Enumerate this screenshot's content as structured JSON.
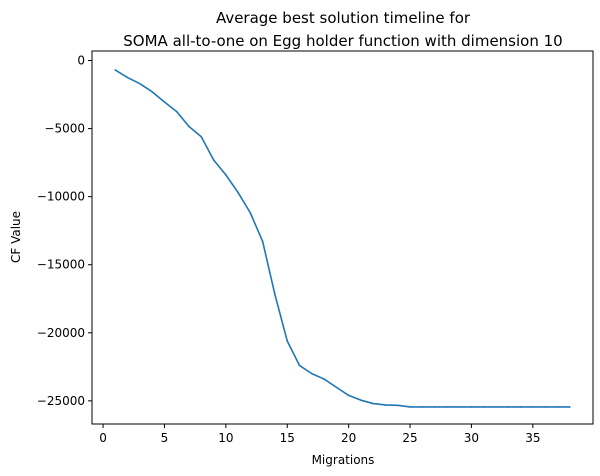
{
  "chart_data": {
    "type": "line",
    "title": [
      "Average best solution timeline for",
      "SOMA all-to-one on Egg holder function with dimension 10"
    ],
    "xlabel": "Migrations",
    "ylabel": "CF Value",
    "xlim": [
      -0.9,
      39.9
    ],
    "ylim": [
      -26700,
      700
    ],
    "xticks": [
      0,
      5,
      10,
      15,
      20,
      25,
      30,
      35
    ],
    "xtick_labels": [
      "0",
      "5",
      "10",
      "15",
      "20",
      "25",
      "30",
      "35"
    ],
    "yticks": [
      0,
      -5000,
      -10000,
      -15000,
      -20000,
      -25000
    ],
    "ytick_labels": [
      "0",
      "−5000",
      "−10000",
      "−15000",
      "−20000",
      "−25000"
    ],
    "grid": false,
    "series": [
      {
        "color": "#1f77b4",
        "x": [
          1,
          2,
          3,
          4,
          5,
          6,
          7,
          8,
          9,
          10,
          11,
          12,
          13,
          14,
          15,
          16,
          17,
          18,
          19,
          20,
          21,
          22,
          23,
          24,
          25,
          26,
          27,
          28,
          29,
          30,
          31,
          32,
          33,
          34,
          35,
          36,
          37,
          38
        ],
        "y": [
          -700,
          -1250,
          -1700,
          -2300,
          -3050,
          -3750,
          -4850,
          -5600,
          -7300,
          -8400,
          -9700,
          -11200,
          -13300,
          -17200,
          -20600,
          -22400,
          -23000,
          -23400,
          -24000,
          -24600,
          -24950,
          -25200,
          -25300,
          -25330,
          -25450,
          -25450,
          -25450,
          -25450,
          -25450,
          -25450,
          -25450,
          -25450,
          -25450,
          -25450,
          -25450,
          -25450,
          -25450,
          -25450
        ]
      }
    ]
  }
}
